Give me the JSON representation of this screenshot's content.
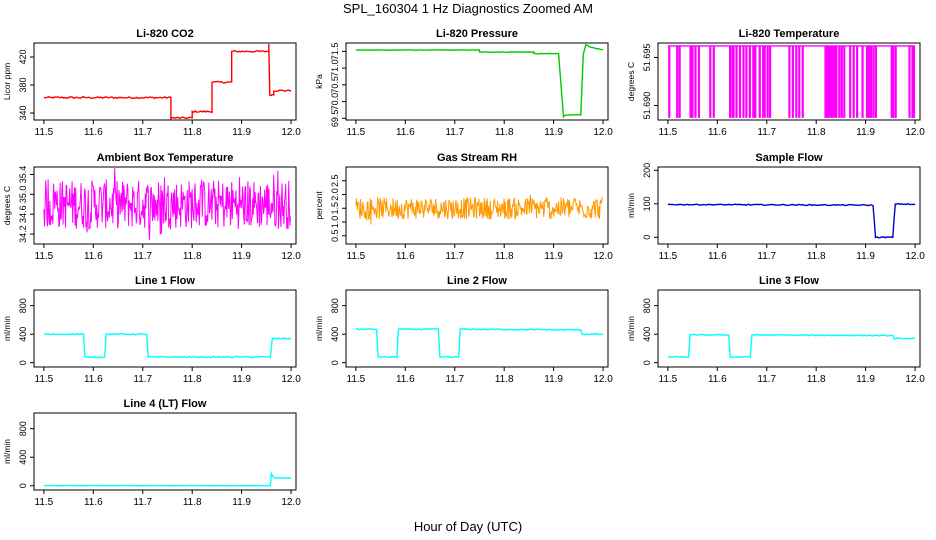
{
  "page": {
    "title": "SPL_160304  1 Hz Diagnostics Zoomed AM",
    "xlabel": "Hour of Day (UTC)"
  },
  "chart_data": [
    {
      "type": "line",
      "title": "Li-820 CO2",
      "ylabel": "Licor ppm",
      "color": "#ff0000",
      "xlim": [
        11.48,
        12.01
      ],
      "ylim": [
        330,
        440
      ],
      "xticks": [
        "11.5",
        "11.6",
        "11.7",
        "11.8",
        "11.9",
        "12.0"
      ],
      "yticks": [
        "340",
        "380",
        "420"
      ],
      "noise": 1.2,
      "series": [
        {
          "points": [
            [
              11.5,
              362
            ],
            [
              11.757,
              362
            ],
            [
              11.757,
              333
            ],
            [
              11.8,
              333
            ],
            [
              11.8,
              342
            ],
            [
              11.84,
              342
            ],
            [
              11.84,
              384
            ],
            [
              11.88,
              384
            ],
            [
              11.88,
              428
            ],
            [
              11.955,
              428
            ],
            [
              11.955,
              440
            ],
            [
              11.957,
              366
            ],
            [
              11.965,
              366
            ],
            [
              11.965,
              372
            ],
            [
              12.0,
              372
            ]
          ]
        }
      ]
    },
    {
      "type": "line",
      "title": "Li-820 Pressure",
      "ylabel": "kPa",
      "color": "#00cc00",
      "xlim": [
        11.48,
        12.01
      ],
      "ylim": [
        69.45,
        71.75
      ],
      "xticks": [
        "11.5",
        "11.6",
        "11.7",
        "11.8",
        "11.9",
        "12.0"
      ],
      "yticks": [
        "69.5",
        "70.0",
        "70.5",
        "71.0",
        "71.5"
      ],
      "noise": 0.008,
      "series": [
        {
          "points": [
            [
              11.5,
              71.54
            ],
            [
              11.75,
              71.54
            ],
            [
              11.75,
              71.48
            ],
            [
              11.86,
              71.48
            ],
            [
              11.86,
              71.43
            ],
            [
              11.91,
              71.43
            ],
            [
              11.92,
              69.55
            ],
            [
              11.925,
              69.6
            ],
            [
              11.955,
              69.6
            ],
            [
              11.96,
              71.4
            ],
            [
              11.965,
              71.7
            ],
            [
              11.975,
              71.62
            ],
            [
              12.0,
              71.55
            ]
          ]
        }
      ]
    },
    {
      "type": "line",
      "title": "Li-820 Temperature",
      "ylabel": "degrees C",
      "color": "#ff00ff",
      "xlim": [
        11.48,
        12.01
      ],
      "ylim": [
        51.6885,
        51.6965
      ],
      "xticks": [
        "11.5",
        "11.6",
        "11.7",
        "11.8",
        "11.9",
        "12.0"
      ],
      "yticks": [
        "51.690",
        "51.695"
      ],
      "pattern": "spikes",
      "base": 51.6962,
      "low": 51.6888,
      "spike_x": [
        11.502,
        11.518,
        11.523,
        11.545,
        11.549,
        11.555,
        11.562,
        11.585,
        11.592,
        11.625,
        11.63,
        11.632,
        11.638,
        11.645,
        11.652,
        11.658,
        11.665,
        11.672,
        11.676,
        11.685,
        11.692,
        11.695,
        11.701,
        11.706,
        11.745,
        11.752,
        11.759,
        11.765,
        11.772,
        11.818,
        11.822,
        11.825,
        11.829,
        11.832,
        11.836,
        11.84,
        11.846,
        11.851,
        11.856,
        11.868,
        11.875,
        11.882,
        11.893,
        11.902,
        11.906,
        11.91,
        11.915,
        11.92,
        11.952,
        11.955,
        11.96,
        11.988,
        11.994,
        11.997
      ]
    },
    {
      "type": "line",
      "title": "Ambient Box Temperature",
      "ylabel": "degrees C",
      "color": "#ff00ff",
      "xlim": [
        11.48,
        12.01
      ],
      "ylim": [
        34.0,
        35.55
      ],
      "xticks": [
        "11.5",
        "11.6",
        "11.7",
        "11.8",
        "11.9",
        "12.0"
      ],
      "yticks": [
        "34.2",
        "34.6",
        "35.0",
        "35.4"
      ],
      "pattern": "band",
      "band_low": 34.3,
      "band_high": 35.3
    },
    {
      "type": "line",
      "title": "Gas Stream RH",
      "ylabel": "percent",
      "color": "#ff9900",
      "xlim": [
        11.48,
        12.01
      ],
      "ylim": [
        0.2,
        3.0
      ],
      "xticks": [
        "11.5",
        "11.6",
        "11.7",
        "11.8",
        "11.9",
        "12.0"
      ],
      "yticks": [
        "0.5",
        "1.0",
        "1.5",
        "2.0",
        "2.5"
      ],
      "pattern": "band",
      "band_low": 1.1,
      "band_high": 1.9
    },
    {
      "type": "line",
      "title": "Sample Flow",
      "ylabel": "ml/min",
      "color": "#0000cc",
      "xlim": [
        11.48,
        12.01
      ],
      "ylim": [
        -20,
        210
      ],
      "xticks": [
        "11.5",
        "11.6",
        "11.7",
        "11.8",
        "11.9",
        "12.0"
      ],
      "yticks": [
        "0",
        "100",
        "200"
      ],
      "noise": 1.5,
      "series": [
        {
          "points": [
            [
              11.5,
              98
            ],
            [
              11.915,
              96
            ],
            [
              11.92,
              0
            ],
            [
              11.955,
              0
            ],
            [
              11.96,
              100
            ],
            [
              12.0,
              98
            ]
          ]
        }
      ]
    },
    {
      "type": "line",
      "title": "Line 1 Flow",
      "ylabel": "ml/min",
      "color": "#00ffff",
      "xlim": [
        11.48,
        12.01
      ],
      "ylim": [
        -60,
        1020
      ],
      "xticks": [
        "11.5",
        "11.6",
        "11.7",
        "11.8",
        "11.9",
        "12.0"
      ],
      "yticks": [
        "0",
        "400",
        "800"
      ],
      "noise": 8,
      "series": [
        {
          "points": [
            [
              11.5,
              400
            ],
            [
              11.58,
              400
            ],
            [
              11.583,
              80
            ],
            [
              11.623,
              80
            ],
            [
              11.626,
              400
            ],
            [
              11.708,
              400
            ],
            [
              11.711,
              80
            ],
            [
              11.958,
              80
            ],
            [
              11.962,
              340
            ],
            [
              12.0,
              340
            ]
          ]
        }
      ]
    },
    {
      "type": "line",
      "title": "Line 2 Flow",
      "ylabel": "ml/min",
      "color": "#00ffff",
      "xlim": [
        11.48,
        12.01
      ],
      "ylim": [
        -60,
        1020
      ],
      "xticks": [
        "11.5",
        "11.6",
        "11.7",
        "11.8",
        "11.9",
        "12.0"
      ],
      "yticks": [
        "0",
        "400",
        "800"
      ],
      "noise": 8,
      "series": [
        {
          "points": [
            [
              11.5,
              470
            ],
            [
              11.542,
              470
            ],
            [
              11.545,
              80
            ],
            [
              11.583,
              80
            ],
            [
              11.586,
              470
            ],
            [
              11.667,
              470
            ],
            [
              11.67,
              80
            ],
            [
              11.708,
              80
            ],
            [
              11.711,
              470
            ],
            [
              11.955,
              460
            ],
            [
              11.958,
              400
            ],
            [
              12.0,
              400
            ]
          ]
        }
      ]
    },
    {
      "type": "line",
      "title": "Line 3 Flow",
      "ylabel": "ml/min",
      "color": "#00ffff",
      "xlim": [
        11.48,
        12.01
      ],
      "ylim": [
        -60,
        1020
      ],
      "xticks": [
        "11.5",
        "11.6",
        "11.7",
        "11.8",
        "11.9",
        "12.0"
      ],
      "yticks": [
        "0",
        "400",
        "800"
      ],
      "noise": 6,
      "series": [
        {
          "points": [
            [
              11.5,
              80
            ],
            [
              11.542,
              80
            ],
            [
              11.545,
              390
            ],
            [
              11.623,
              390
            ],
            [
              11.626,
              80
            ],
            [
              11.667,
              80
            ],
            [
              11.67,
              390
            ],
            [
              11.955,
              380
            ],
            [
              11.958,
              340
            ],
            [
              12.0,
              340
            ]
          ]
        }
      ]
    },
    {
      "type": "line",
      "title": "Line 4 (LT) Flow",
      "ylabel": "ml/min",
      "color": "#00ffff",
      "xlim": [
        11.48,
        12.01
      ],
      "ylim": [
        -60,
        1020
      ],
      "xticks": [
        "11.5",
        "11.6",
        "11.7",
        "11.8",
        "11.9",
        "12.0"
      ],
      "yticks": [
        "0",
        "400",
        "800"
      ],
      "noise": 2,
      "series": [
        {
          "points": [
            [
              11.5,
              0
            ],
            [
              11.958,
              0
            ],
            [
              11.96,
              170
            ],
            [
              11.965,
              110
            ],
            [
              12.0,
              110
            ]
          ]
        }
      ]
    }
  ]
}
